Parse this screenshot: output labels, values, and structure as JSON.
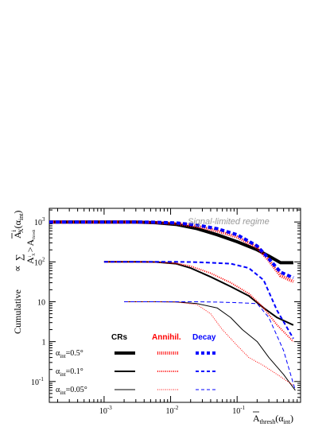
{
  "chart_data": {
    "type": "line",
    "xscale": "log",
    "yscale": "log",
    "xlim": [
      0.00015,
      0.9
    ],
    "ylim": [
      0.03,
      2200
    ],
    "grid": false,
    "annotation": "Signal-limited regime",
    "xlabel": {
      "main": "A",
      "sub": "thresh",
      "paren_open": "(α",
      "paren_sub": "int",
      "paren_close": ")"
    },
    "ylabel": {
      "main": "Cumulative",
      "prop": "∝",
      "sum": "∑",
      "term": "A",
      "sup": "i",
      "term_sub": "X",
      "paren_open": "(α",
      "paren_sub": "int",
      "paren_close": ")",
      "under_term": "A",
      "under_sup": "i",
      "under_sub": "X",
      "under_op": ">",
      "under_term2": "A",
      "under_sub2": "thresh"
    },
    "x_ticks": [
      {
        "value": 0.001,
        "base": "10",
        "exp": "-3"
      },
      {
        "value": 0.01,
        "base": "10",
        "exp": "-2"
      },
      {
        "value": 0.1,
        "base": "10",
        "exp": "-1"
      }
    ],
    "y_ticks": [
      {
        "value": 0.1,
        "base": "10",
        "exp": "-1"
      },
      {
        "value": 1,
        "base": "1",
        "exp": ""
      },
      {
        "value": 10,
        "base": "10",
        "exp": ""
      },
      {
        "value": 100,
        "base": "10",
        "exp": "2"
      },
      {
        "value": 1000,
        "base": "10",
        "exp": "3"
      }
    ],
    "legend": {
      "headers": [
        {
          "label": "CRs",
          "color": "#000000"
        },
        {
          "label": "Annihil.",
          "color": "#ff0000"
        },
        {
          "label": "Decay",
          "color": "#0000ff"
        }
      ],
      "rows": [
        {
          "alpha": "α",
          "sub": "int",
          "value": "=0.5°",
          "width": 4
        },
        {
          "alpha": "α",
          "sub": "int",
          "value": "=0.1°",
          "width": 2
        },
        {
          "alpha": "α",
          "sub": "int",
          "value": "=0.05°",
          "width": 1
        }
      ]
    },
    "series": [
      {
        "source": "CRs",
        "alpha": "0.5°",
        "color": "#000000",
        "style": "solid",
        "width": 4,
        "x": [
          0.00015,
          0.001,
          0.003,
          0.006,
          0.012,
          0.025,
          0.05,
          0.1,
          0.2,
          0.3,
          0.45,
          0.7
        ],
        "y": [
          1000,
          1000,
          995,
          960,
          870,
          680,
          480,
          320,
          200,
          140,
          95,
          95
        ]
      },
      {
        "source": "Annihil.",
        "alpha": "0.5°",
        "color": "#ff0000",
        "style": "dotted",
        "width": 4,
        "x": [
          0.00015,
          0.001,
          0.003,
          0.006,
          0.012,
          0.025,
          0.05,
          0.1,
          0.2,
          0.3,
          0.45,
          0.7
        ],
        "y": [
          1000,
          1000,
          995,
          970,
          920,
          780,
          600,
          420,
          230,
          110,
          45,
          32
        ]
      },
      {
        "source": "Decay",
        "alpha": "0.5°",
        "color": "#0000ff",
        "style": "dashed",
        "width": 4,
        "x": [
          0.00015,
          0.001,
          0.003,
          0.006,
          0.012,
          0.025,
          0.05,
          0.1,
          0.2,
          0.3,
          0.45,
          0.7
        ],
        "y": [
          1000,
          1000,
          1000,
          985,
          950,
          840,
          680,
          480,
          250,
          120,
          55,
          40
        ]
      },
      {
        "source": "CRs",
        "alpha": "0.1°",
        "color": "#000000",
        "style": "solid",
        "width": 2,
        "x": [
          0.001,
          0.003,
          0.006,
          0.012,
          0.02,
          0.04,
          0.08,
          0.15,
          0.25,
          0.4,
          0.7
        ],
        "y": [
          100,
          100,
          99,
          90,
          70,
          42,
          24,
          14,
          7,
          4,
          2.6
        ]
      },
      {
        "source": "Annihil.",
        "alpha": "0.1°",
        "color": "#ff0000",
        "style": "dotted",
        "width": 2,
        "x": [
          0.001,
          0.003,
          0.006,
          0.012,
          0.02,
          0.04,
          0.08,
          0.15,
          0.25,
          0.4,
          0.7
        ],
        "y": [
          100,
          100,
          99,
          92,
          78,
          52,
          30,
          16,
          7,
          2.6,
          1
        ]
      },
      {
        "source": "Decay",
        "alpha": "0.1°",
        "color": "#0000ff",
        "style": "dashed",
        "width": 2,
        "x": [
          0.001,
          0.003,
          0.006,
          0.012,
          0.02,
          0.04,
          0.08,
          0.15,
          0.25,
          0.4,
          0.7
        ],
        "y": [
          100,
          100,
          100,
          100,
          99,
          95,
          90,
          70,
          35,
          6,
          1.2
        ]
      },
      {
        "source": "CRs",
        "alpha": "0.05°",
        "color": "#000000",
        "style": "solid",
        "width": 1,
        "x": [
          0.002,
          0.006,
          0.012,
          0.025,
          0.05,
          0.08,
          0.12,
          0.2,
          0.3,
          0.5,
          0.75
        ],
        "y": [
          10,
          10,
          9.9,
          9,
          7,
          4,
          2,
          1,
          0.4,
          0.15,
          0.06
        ]
      },
      {
        "source": "Annihil.",
        "alpha": "0.05°",
        "color": "#ff0000",
        "style": "dotted",
        "width": 1,
        "x": [
          0.002,
          0.006,
          0.012,
          0.025,
          0.04,
          0.06,
          0.1,
          0.15,
          0.25,
          0.4,
          0.7
        ],
        "y": [
          10,
          10,
          9.9,
          8.5,
          5,
          2,
          0.8,
          0.4,
          0.25,
          0.15,
          0.08
        ]
      },
      {
        "source": "Decay",
        "alpha": "0.05°",
        "color": "#0000ff",
        "style": "dashed",
        "width": 1,
        "x": [
          0.002,
          0.006,
          0.012,
          0.025,
          0.05,
          0.1,
          0.2,
          0.3,
          0.5,
          0.75
        ],
        "y": [
          10,
          10,
          10,
          10,
          9.8,
          9.5,
          9,
          4,
          0.6,
          0.06
        ]
      }
    ]
  }
}
